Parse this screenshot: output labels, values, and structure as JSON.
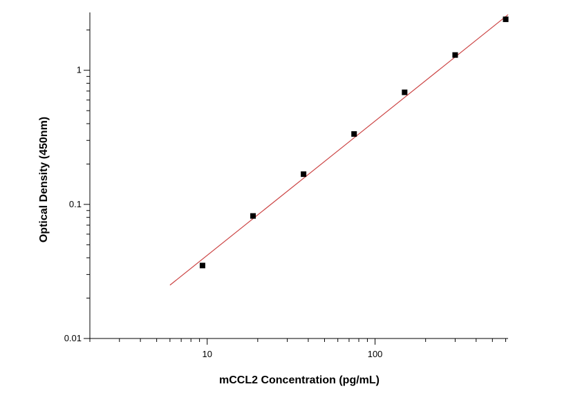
{
  "chart_data": {
    "type": "scatter",
    "title": "",
    "xlabel": "mCCL2 Concentration (pg/mL)",
    "ylabel": "Optical Density (450nm)",
    "x_scale": "log",
    "y_scale": "log",
    "xlim": [
      2,
      620
    ],
    "ylim": [
      0.01,
      2.7
    ],
    "x_ticks": [
      10,
      100
    ],
    "x_tick_labels": [
      "10",
      "100"
    ],
    "y_ticks": [
      0.01,
      0.1,
      1
    ],
    "y_tick_labels": [
      "0.01",
      "0.1",
      "1"
    ],
    "grid": false,
    "series": [
      {
        "marker": "square",
        "color": "#000000",
        "x": [
          9.375,
          18.75,
          37.5,
          75,
          150,
          300,
          600
        ],
        "y": [
          0.035,
          0.082,
          0.168,
          0.335,
          0.685,
          1.3,
          2.4
        ]
      }
    ],
    "fit_line": {
      "color": "#cc4444",
      "x": [
        6,
        620
      ],
      "y": [
        0.025,
        2.6
      ]
    }
  }
}
